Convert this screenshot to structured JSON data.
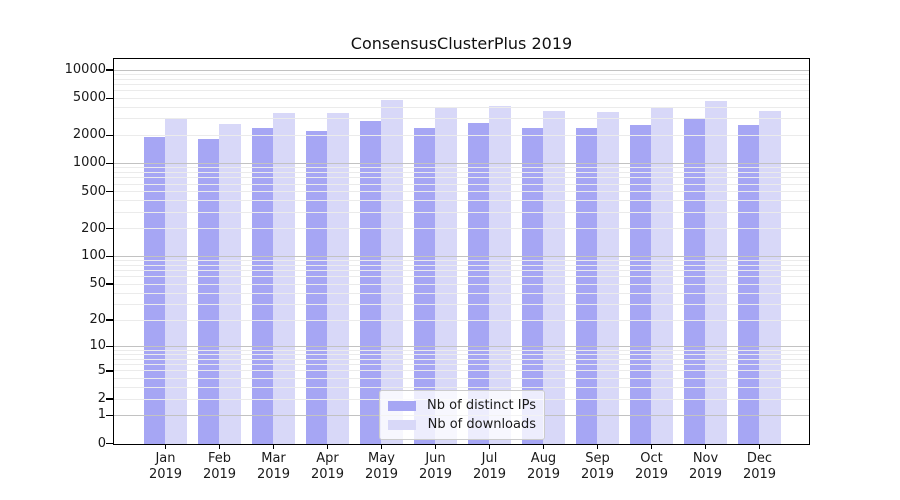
{
  "chart_data": {
    "type": "bar",
    "title": "ConsensusClusterPlus 2019",
    "categories": [
      "Jan 2019",
      "Feb 2019",
      "Mar 2019",
      "Apr 2019",
      "May 2019",
      "Jun 2019",
      "Jul 2019",
      "Aug 2019",
      "Sep 2019",
      "Oct 2019",
      "Nov 2019",
      "Dec 2019"
    ],
    "x_tick_months": [
      "Jan",
      "Feb",
      "Mar",
      "Apr",
      "May",
      "Jun",
      "Jul",
      "Aug",
      "Sep",
      "Oct",
      "Nov",
      "Dec"
    ],
    "x_tick_year": "2019",
    "series": [
      {
        "name": "Nb of distinct IPs",
        "color": "#a6a6f4",
        "values": [
          1950,
          1840,
          2430,
          2240,
          2860,
          2460,
          2720,
          2410,
          2440,
          2640,
          3100,
          2590
        ]
      },
      {
        "name": "Nb of downloads",
        "color": "#d8d8f8",
        "values": [
          3060,
          2690,
          3540,
          3490,
          4850,
          3950,
          4200,
          3660,
          3650,
          4010,
          4750,
          3720
        ]
      }
    ],
    "y_axis": {
      "scale": "log1p",
      "tick_values": [
        0,
        1,
        2,
        5,
        10,
        20,
        50,
        100,
        200,
        500,
        1000,
        2000,
        5000,
        10000
      ],
      "tick_labels": [
        "0",
        "1",
        "2",
        "5",
        "10",
        "20",
        "50",
        "100",
        "200",
        "500",
        "1000",
        "2000",
        "5000",
        "10000"
      ],
      "ylim": [
        0,
        13000
      ],
      "major_gridlines": [
        1,
        10,
        100,
        1000,
        10000
      ]
    },
    "grid": true,
    "legend_position": "bottom-center"
  }
}
